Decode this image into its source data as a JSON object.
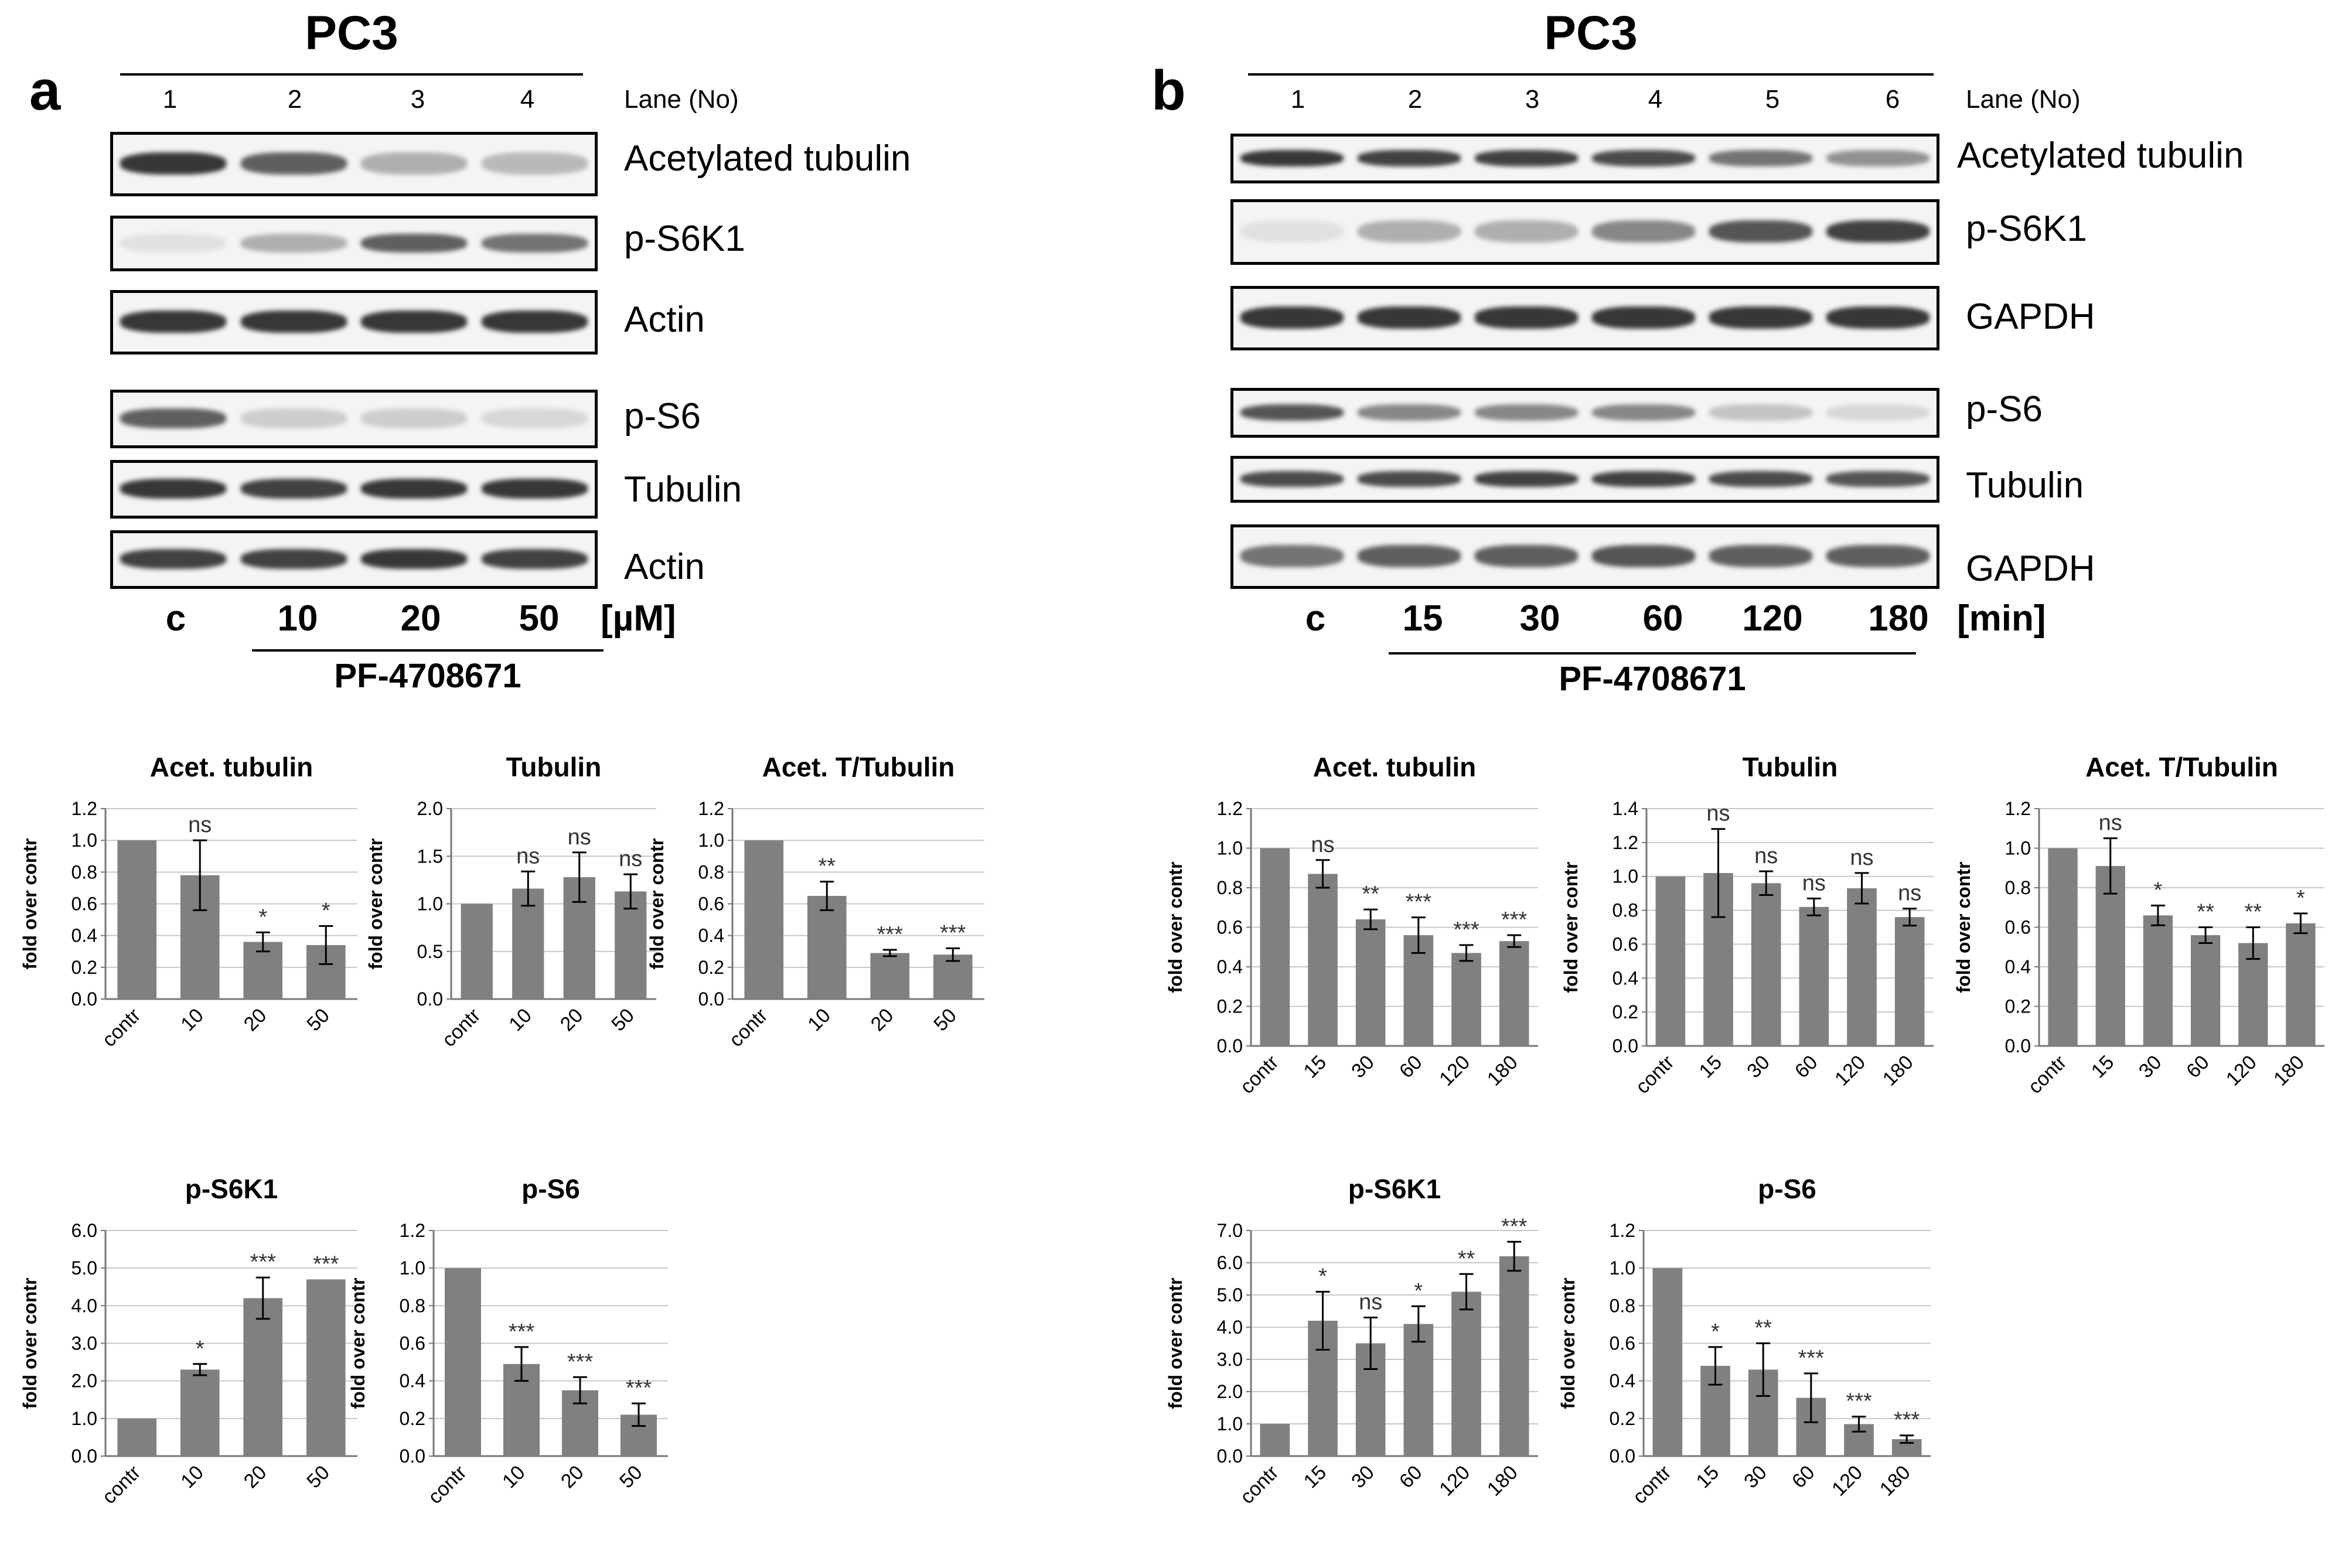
{
  "panels": [
    {
      "letter": "a",
      "title": "PC3",
      "lane_header": "Lane (No)",
      "lanes": [
        "1",
        "2",
        "3",
        "4"
      ],
      "blots": [
        {
          "label": "Acetylated tubulin",
          "intensities": [
            0.9,
            0.7,
            0.3,
            0.25
          ]
        },
        {
          "label": "p-S6K1",
          "intensities": [
            0.05,
            0.3,
            0.7,
            0.6
          ]
        },
        {
          "label": "Actin",
          "intensities": [
            0.9,
            0.9,
            0.9,
            0.9
          ]
        },
        {
          "label": "p-S6",
          "intensities": [
            0.7,
            0.15,
            0.15,
            0.1
          ]
        },
        {
          "label": "Tubulin",
          "intensities": [
            0.9,
            0.85,
            0.9,
            0.9
          ]
        },
        {
          "label": "Actin",
          "intensities": [
            0.85,
            0.85,
            0.9,
            0.85
          ]
        }
      ],
      "conditions": [
        "c",
        "10",
        "20",
        "50"
      ],
      "unit": "[µM]",
      "treatment": "PF-4708671"
    },
    {
      "letter": "b",
      "title": "PC3",
      "lane_header": "Lane (No)",
      "lanes": [
        "1",
        "2",
        "3",
        "4",
        "5",
        "6"
      ],
      "blots": [
        {
          "label": "Acetylated tubulin",
          "intensities": [
            0.9,
            0.85,
            0.85,
            0.8,
            0.6,
            0.45
          ]
        },
        {
          "label": "p-S6K1",
          "intensities": [
            0.05,
            0.3,
            0.3,
            0.5,
            0.75,
            0.85
          ]
        },
        {
          "label": "GAPDH",
          "intensities": [
            0.9,
            0.9,
            0.9,
            0.9,
            0.9,
            0.9
          ]
        },
        {
          "label": "p-S6",
          "intensities": [
            0.75,
            0.5,
            0.5,
            0.5,
            0.2,
            0.1
          ]
        },
        {
          "label": "Tubulin",
          "intensities": [
            0.8,
            0.8,
            0.85,
            0.85,
            0.8,
            0.75
          ]
        },
        {
          "label": "GAPDH",
          "intensities": [
            0.6,
            0.7,
            0.7,
            0.75,
            0.7,
            0.7
          ]
        }
      ],
      "conditions": [
        "c",
        "15",
        "30",
        "60",
        "120",
        "180"
      ],
      "unit": "[min]",
      "treatment": "PF-4708671"
    }
  ],
  "chart_data": [
    {
      "id": "a1",
      "type": "bar",
      "title": "Acet. tubulin",
      "ylabel": "fold over contr",
      "categories": [
        "contr",
        "10",
        "20",
        "50"
      ],
      "values": [
        1.0,
        0.78,
        0.36,
        0.34
      ],
      "errors": [
        0,
        0.22,
        0.06,
        0.12
      ],
      "annotations": [
        "",
        "ns",
        "*",
        "*"
      ],
      "ylim": [
        0,
        1.2
      ],
      "yticks": [
        "0.0",
        "0.2",
        "0.4",
        "0.6",
        "0.8",
        "1.0",
        "1.2"
      ]
    },
    {
      "id": "a2",
      "type": "bar",
      "title": "Tubulin",
      "ylabel": "fold over contr",
      "categories": [
        "contr",
        "10",
        "20",
        "50"
      ],
      "values": [
        1.0,
        1.16,
        1.28,
        1.13
      ],
      "errors": [
        0,
        0.18,
        0.26,
        0.18
      ],
      "annotations": [
        "",
        "ns",
        "ns",
        "ns"
      ],
      "ylim": [
        0,
        2.0
      ],
      "yticks": [
        "0.0",
        "0.5",
        "1.0",
        "1.5",
        "2.0"
      ]
    },
    {
      "id": "a3",
      "type": "bar",
      "title": "Acet. T/Tubulin",
      "ylabel": "fold over contr",
      "categories": [
        "contr",
        "10",
        "20",
        "50"
      ],
      "values": [
        1.0,
        0.65,
        0.29,
        0.28
      ],
      "errors": [
        0,
        0.09,
        0.02,
        0.04
      ],
      "annotations": [
        "",
        "**",
        "***",
        "***"
      ],
      "ylim": [
        0,
        1.2
      ],
      "yticks": [
        "0.0",
        "0.2",
        "0.4",
        "0.6",
        "0.8",
        "1.0",
        "1.2"
      ]
    },
    {
      "id": "a4",
      "type": "bar",
      "title": "p-S6K1",
      "ylabel": "fold over contr",
      "categories": [
        "contr",
        "10",
        "20",
        "50"
      ],
      "values": [
        1.0,
        2.3,
        4.2,
        4.7
      ],
      "errors": [
        0,
        0.15,
        0.55,
        0
      ],
      "annotations": [
        "",
        "*",
        "***",
        "***"
      ],
      "ylim": [
        0,
        6.0
      ],
      "yticks": [
        "0.0",
        "1.0",
        "2.0",
        "3.0",
        "4.0",
        "5.0",
        "6.0"
      ]
    },
    {
      "id": "a5",
      "type": "bar",
      "title": "p-S6",
      "ylabel": "fold over contr",
      "categories": [
        "contr",
        "10",
        "20",
        "50"
      ],
      "values": [
        1.0,
        0.49,
        0.35,
        0.22
      ],
      "errors": [
        0,
        0.09,
        0.07,
        0.06
      ],
      "annotations": [
        "",
        "***",
        "***",
        "***"
      ],
      "ylim": [
        0,
        1.2
      ],
      "yticks": [
        "0.0",
        "0.2",
        "0.4",
        "0.6",
        "0.8",
        "1.0",
        "1.2"
      ]
    },
    {
      "id": "b1",
      "type": "bar",
      "title": "Acet. tubulin",
      "ylabel": "fold over contr",
      "categories": [
        "contr",
        "15",
        "30",
        "60",
        "120",
        "180"
      ],
      "values": [
        1.0,
        0.87,
        0.64,
        0.56,
        0.47,
        0.53
      ],
      "errors": [
        0,
        0.07,
        0.05,
        0.09,
        0.04,
        0.03
      ],
      "annotations": [
        "",
        "ns",
        "**",
        "***",
        "***",
        "***"
      ],
      "ylim": [
        0,
        1.2
      ],
      "yticks": [
        "0.0",
        "0.2",
        "0.4",
        "0.6",
        "0.8",
        "1.0",
        "1.2"
      ]
    },
    {
      "id": "b2",
      "type": "bar",
      "title": "Tubulin",
      "ylabel": "fold over contr",
      "categories": [
        "contr",
        "15",
        "30",
        "60",
        "120",
        "180"
      ],
      "values": [
        1.0,
        1.02,
        0.96,
        0.82,
        0.93,
        0.76
      ],
      "errors": [
        0,
        0.26,
        0.07,
        0.05,
        0.09,
        0.05
      ],
      "annotations": [
        "",
        "ns",
        "ns",
        "ns",
        "ns",
        "ns"
      ],
      "ylim": [
        0,
        1.4
      ],
      "yticks": [
        "0.0",
        "0.2",
        "0.4",
        "0.6",
        "0.8",
        "1.0",
        "1.2",
        "1.4"
      ]
    },
    {
      "id": "b3",
      "type": "bar",
      "title": "Acet. T/Tubulin",
      "ylabel": "fold over contr",
      "categories": [
        "contr",
        "15",
        "30",
        "60",
        "120",
        "180"
      ],
      "values": [
        1.0,
        0.91,
        0.66,
        0.56,
        0.52,
        0.62
      ],
      "errors": [
        0,
        0.14,
        0.05,
        0.04,
        0.08,
        0.05
      ],
      "annotations": [
        "",
        "ns",
        "*",
        "**",
        "**",
        "*"
      ],
      "ylim": [
        0,
        1.2
      ],
      "yticks": [
        "0.0",
        "0.2",
        "0.4",
        "0.6",
        "0.8",
        "1.0",
        "1.2"
      ]
    },
    {
      "id": "b4",
      "type": "bar",
      "title": "p-S6K1",
      "ylabel": "fold over contr",
      "categories": [
        "contr",
        "15",
        "30",
        "60",
        "120",
        "180"
      ],
      "values": [
        1.0,
        4.2,
        3.5,
        4.1,
        5.1,
        6.2
      ],
      "errors": [
        0,
        0.9,
        0.8,
        0.55,
        0.55,
        0.45
      ],
      "annotations": [
        "",
        "*",
        "ns",
        "*",
        "**",
        "***"
      ],
      "ylim": [
        0,
        7.0
      ],
      "yticks": [
        "0.0",
        "1.0",
        "2.0",
        "3.0",
        "4.0",
        "5.0",
        "6.0",
        "7.0"
      ]
    },
    {
      "id": "b5",
      "type": "bar",
      "title": "p-S6",
      "ylabel": "fold over contr",
      "categories": [
        "contr",
        "15",
        "30",
        "60",
        "120",
        "180"
      ],
      "values": [
        1.0,
        0.48,
        0.46,
        0.31,
        0.17,
        0.09
      ],
      "errors": [
        0,
        0.1,
        0.14,
        0.13,
        0.04,
        0.02
      ],
      "annotations": [
        "",
        "*",
        "**",
        "***",
        "***",
        "***"
      ],
      "ylim": [
        0,
        1.2
      ],
      "yticks": [
        "0.0",
        "0.2",
        "0.4",
        "0.6",
        "0.8",
        "1.0",
        "1.2"
      ]
    }
  ]
}
